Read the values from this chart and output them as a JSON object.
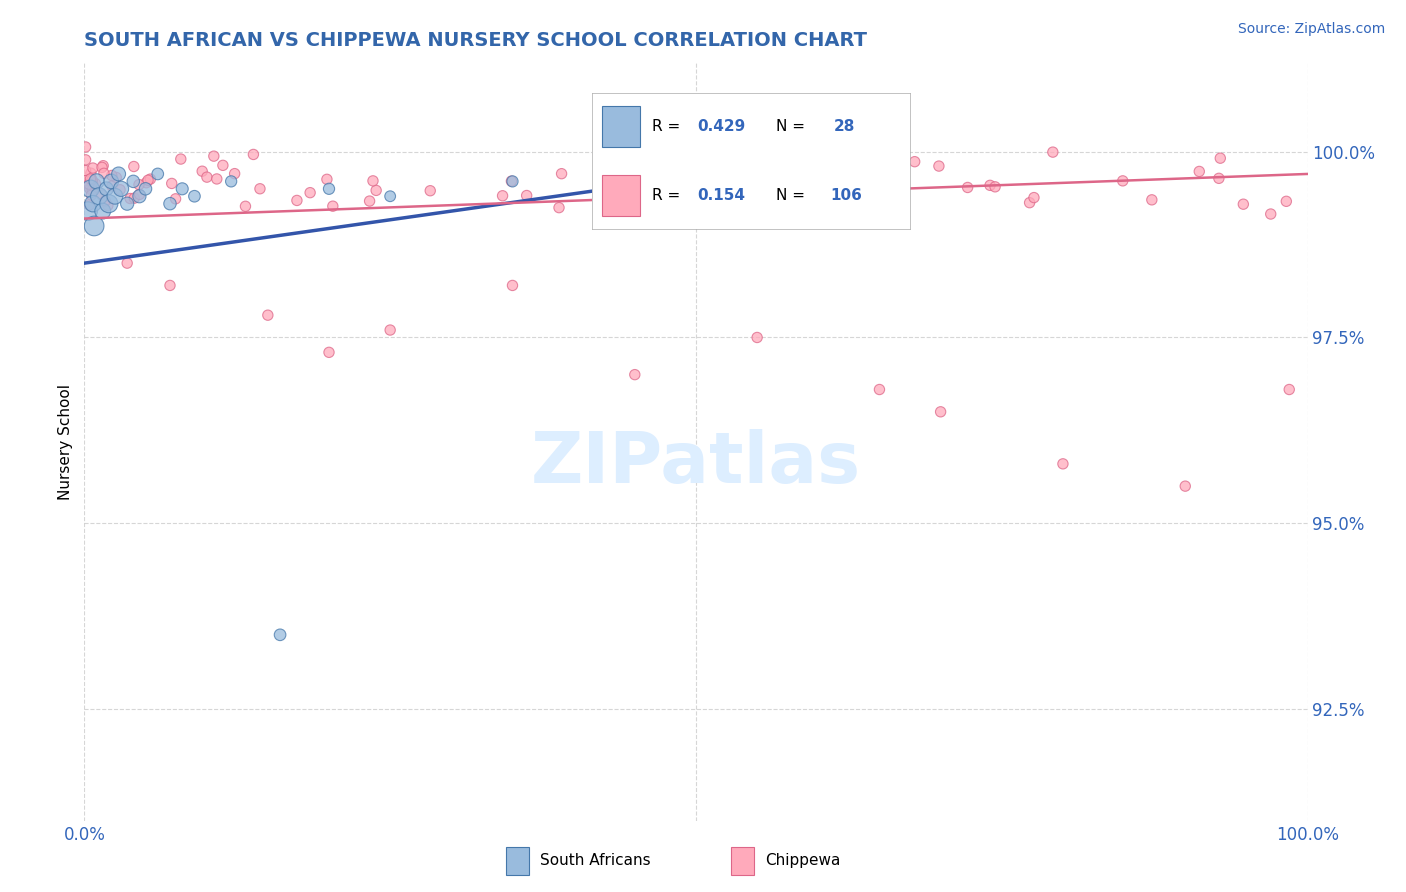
{
  "title": "SOUTH AFRICAN VS CHIPPEWA NURSERY SCHOOL CORRELATION CHART",
  "source": "Source: ZipAtlas.com",
  "ylabel": "Nursery School",
  "yticks": [
    92.5,
    95.0,
    97.5,
    100.0
  ],
  "ytick_labels": [
    "92.5%",
    "95.0%",
    "97.5%",
    "100.0%"
  ],
  "xlim": [
    0.0,
    100.0
  ],
  "ylim": [
    91.0,
    101.2
  ],
  "blue_face_color": "#99BBDD",
  "blue_edge_color": "#4477AA",
  "pink_face_color": "#FFAABB",
  "pink_edge_color": "#DD6688",
  "blue_line_color": "#3355AA",
  "pink_line_color": "#DD6688",
  "title_color": "#3366AA",
  "axis_label_color": "#3366BB",
  "background_color": "#FFFFFF",
  "watermark_color": "#DDEEFF",
  "legend_text_color": "#3366BB",
  "source_color": "#3366BB"
}
